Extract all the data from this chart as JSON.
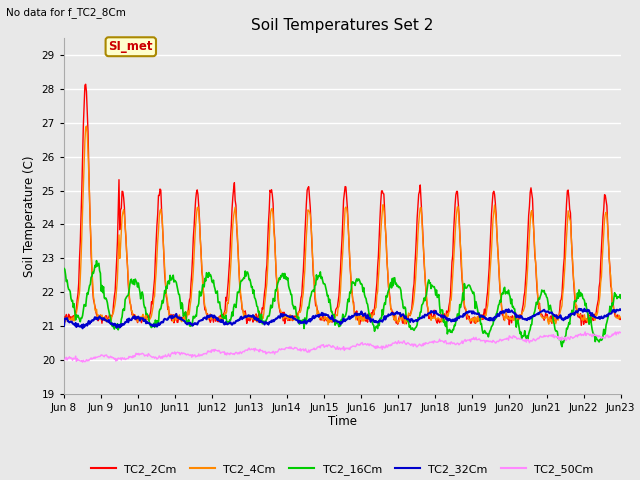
{
  "title": "Soil Temperatures Set 2",
  "xlabel": "Time",
  "ylabel": "Soil Temperature (C)",
  "top_left_note": "No data for f_TC2_8Cm",
  "annotation_label": "SI_met",
  "annotation_box_facecolor": "#ffffcc",
  "annotation_box_edgecolor": "#aa8800",
  "annotation_text_color": "#cc0000",
  "ylim": [
    19.0,
    29.5
  ],
  "yticks": [
    19.0,
    20.0,
    21.0,
    22.0,
    23.0,
    24.0,
    25.0,
    26.0,
    27.0,
    28.0,
    29.0
  ],
  "bg_color": "#e8e8e8",
  "grid_color": "#ffffff",
  "series": [
    {
      "label": "TC2_2Cm",
      "color": "#ff0000",
      "lw": 1.0
    },
    {
      "label": "TC2_4Cm",
      "color": "#ff8800",
      "lw": 1.0
    },
    {
      "label": "TC2_16Cm",
      "color": "#00cc00",
      "lw": 1.2
    },
    {
      "label": "TC2_32Cm",
      "color": "#0000cc",
      "lw": 1.5
    },
    {
      "label": "TC2_50Cm",
      "color": "#ff88ff",
      "lw": 1.0
    }
  ],
  "xtick_labels": [
    "Jun 8",
    "Jun 9",
    "Jun 10",
    "Jun 11",
    "Jun 12",
    "Jun 13",
    "Jun 14",
    "Jun 15",
    "Jun 16",
    "Jun 17",
    "Jun 18",
    "Jun 19",
    "Jun 20",
    "Jun 21",
    "Jun 22",
    "Jun 23"
  ],
  "n_points": 720
}
